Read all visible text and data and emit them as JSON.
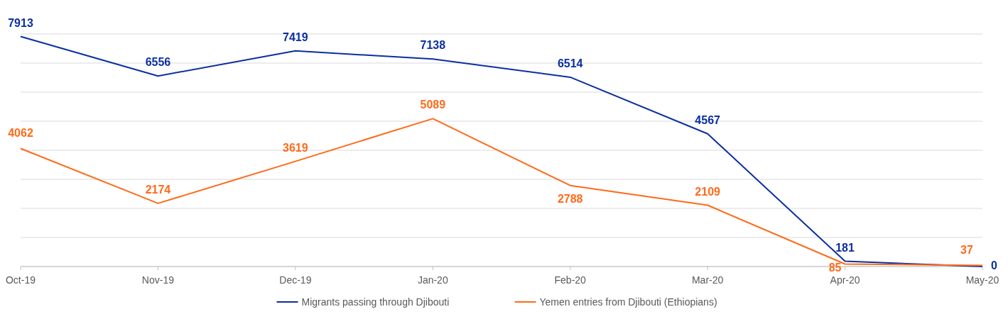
{
  "chart_data": {
    "type": "line",
    "categories": [
      "Oct-19",
      "Nov-19",
      "Dec-19",
      "Jan-20",
      "Feb-20",
      "Mar-20",
      "Apr-20",
      "May-20"
    ],
    "series": [
      {
        "name": "Migrants passing through Djibouti",
        "color": "#0b2fa0",
        "values": [
          7913,
          6556,
          7419,
          7138,
          6514,
          4567,
          181,
          0
        ]
      },
      {
        "name": "Yemen entries from Djibouti (Ethiopians)",
        "color": "#ff6a1a",
        "values": [
          4062,
          2174,
          3619,
          5089,
          2788,
          2109,
          85,
          37
        ]
      }
    ],
    "ylim": [
      0,
      8000
    ],
    "yticks": [
      {
        "value": 0,
        "label": null
      },
      {
        "value": 1000,
        "label": null
      },
      {
        "value": 2000,
        "label": null
      },
      {
        "value": 3000,
        "label": null
      },
      {
        "value": 4000,
        "label": null
      },
      {
        "value": 5000,
        "label": null
      },
      {
        "value": 6000,
        "label": null
      },
      {
        "value": 7000,
        "label": null
      },
      {
        "value": 8000,
        "label": null
      }
    ],
    "grid": "y",
    "tick_labels": "x",
    "data_labels": true,
    "legend": "bottom",
    "marker": "none",
    "line_style": "solid"
  }
}
